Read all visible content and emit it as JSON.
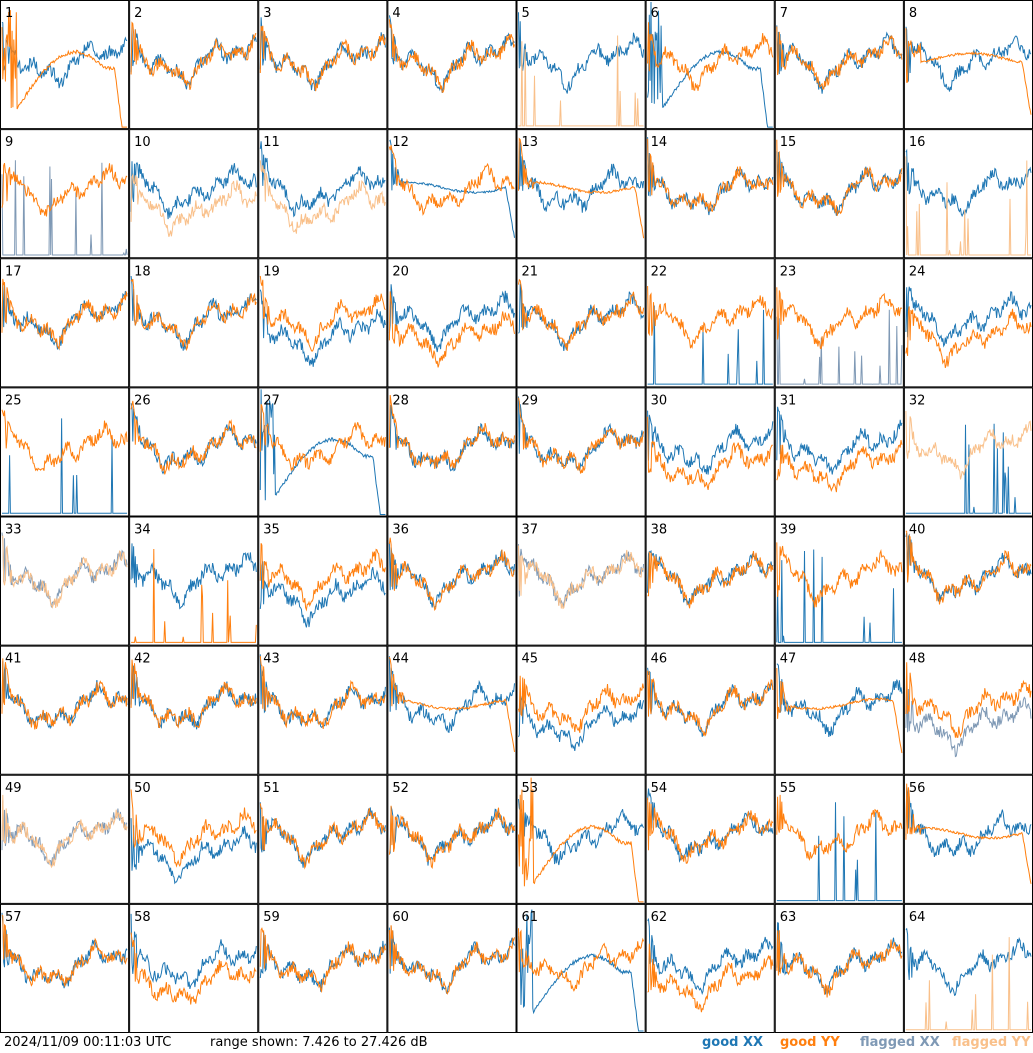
{
  "colors": {
    "good_xx": "#1f77b4",
    "good_yy": "#ff7f0e",
    "flagged_xx": "#7f99b5",
    "flagged_yy": "#f9c08a"
  },
  "footer": {
    "timestamp": "2024/11/09 00:11:03 UTC",
    "range": "range shown: 7.426 to 27.426 dB",
    "legend_good_xx": "good XX",
    "legend_good_yy": "good YY",
    "legend_flagged_xx": "flagged XX",
    "legend_flagged_yy": "flagged YY"
  },
  "chart_data": {
    "type": "line",
    "layout": "8x8 small multiples (one panel per antenna)",
    "ylim": [
      7.426,
      27.426
    ],
    "units": "dB",
    "panels": [
      {
        "label": "1",
        "xx": "normal",
        "yy": "sag",
        "xx_status": "good",
        "yy_status": "good"
      },
      {
        "label": "2",
        "xx": "normal",
        "yy": "normal",
        "xx_status": "good",
        "yy_status": "good"
      },
      {
        "label": "3",
        "xx": "normal",
        "yy": "normal",
        "xx_status": "good",
        "yy_status": "good"
      },
      {
        "label": "4",
        "xx": "normal",
        "yy": "normal",
        "xx_status": "good",
        "yy_status": "good"
      },
      {
        "label": "5",
        "xx": "normal",
        "yy": "spikes",
        "xx_status": "good",
        "yy_status": "flagged"
      },
      {
        "label": "6",
        "xx": "sag",
        "yy": "normal",
        "xx_status": "good",
        "yy_status": "good"
      },
      {
        "label": "7",
        "xx": "normal",
        "yy": "normal",
        "xx_status": "good",
        "yy_status": "good"
      },
      {
        "label": "8",
        "xx": "normal",
        "yy": "smooth",
        "xx_status": "good",
        "yy_status": "good"
      },
      {
        "label": "9",
        "xx": "spikes",
        "yy": "normal",
        "xx_status": "flagged",
        "yy_status": "good"
      },
      {
        "label": "10",
        "xx": "normal",
        "yy": "low",
        "xx_status": "good",
        "yy_status": "flagged"
      },
      {
        "label": "11",
        "xx": "normal",
        "yy": "low",
        "xx_status": "good",
        "yy_status": "flagged"
      },
      {
        "label": "12",
        "xx": "smooth",
        "yy": "normal",
        "xx_status": "good",
        "yy_status": "good"
      },
      {
        "label": "13",
        "xx": "normal",
        "yy": "smooth",
        "xx_status": "good",
        "yy_status": "good"
      },
      {
        "label": "14",
        "xx": "normal",
        "yy": "normal",
        "xx_status": "good",
        "yy_status": "good"
      },
      {
        "label": "15",
        "xx": "normal",
        "yy": "normal",
        "xx_status": "good",
        "yy_status": "good"
      },
      {
        "label": "16",
        "xx": "normal",
        "yy": "spikes",
        "xx_status": "good",
        "yy_status": "flagged"
      },
      {
        "label": "17",
        "xx": "normal",
        "yy": "normal",
        "xx_status": "good",
        "yy_status": "good"
      },
      {
        "label": "18",
        "xx": "normal",
        "yy": "normal",
        "xx_status": "good",
        "yy_status": "good"
      },
      {
        "label": "19",
        "xx": "low",
        "yy": "normal",
        "xx_status": "good",
        "yy_status": "good"
      },
      {
        "label": "20",
        "xx": "normal",
        "yy": "low",
        "xx_status": "good",
        "yy_status": "good"
      },
      {
        "label": "21",
        "xx": "normal",
        "yy": "normal",
        "xx_status": "good",
        "yy_status": "good"
      },
      {
        "label": "22",
        "xx": "spikes",
        "yy": "normal",
        "xx_status": "good",
        "yy_status": "good"
      },
      {
        "label": "23",
        "xx": "spikes",
        "yy": "normal",
        "xx_status": "flagged",
        "yy_status": "good"
      },
      {
        "label": "24",
        "xx": "normal",
        "yy": "low",
        "xx_status": "good",
        "yy_status": "good"
      },
      {
        "label": "25",
        "xx": "spikes",
        "yy": "normal",
        "xx_status": "good",
        "yy_status": "good"
      },
      {
        "label": "26",
        "xx": "normal",
        "yy": "normal",
        "xx_status": "good",
        "yy_status": "good"
      },
      {
        "label": "27",
        "xx": "sag",
        "yy": "normal",
        "xx_status": "good",
        "yy_status": "good"
      },
      {
        "label": "28",
        "xx": "normal",
        "yy": "normal",
        "xx_status": "good",
        "yy_status": "good"
      },
      {
        "label": "29",
        "xx": "normal",
        "yy": "normal",
        "xx_status": "good",
        "yy_status": "good"
      },
      {
        "label": "30",
        "xx": "normal",
        "yy": "low",
        "xx_status": "good",
        "yy_status": "good"
      },
      {
        "label": "31",
        "xx": "normal",
        "yy": "low",
        "xx_status": "good",
        "yy_status": "good"
      },
      {
        "label": "32",
        "xx": "spikes",
        "yy": "normal",
        "xx_status": "good",
        "yy_status": "flagged"
      },
      {
        "label": "33",
        "xx": "normal",
        "yy": "normal",
        "xx_status": "flagged",
        "yy_status": "flagged"
      },
      {
        "label": "34",
        "xx": "normal",
        "yy": "spikes",
        "xx_status": "good",
        "yy_status": "good"
      },
      {
        "label": "35",
        "xx": "low",
        "yy": "normal",
        "xx_status": "good",
        "yy_status": "good"
      },
      {
        "label": "36",
        "xx": "normal",
        "yy": "normal",
        "xx_status": "good",
        "yy_status": "good"
      },
      {
        "label": "37",
        "xx": "normal",
        "yy": "normal",
        "xx_status": "flagged",
        "yy_status": "flagged"
      },
      {
        "label": "38",
        "xx": "normal",
        "yy": "normal",
        "xx_status": "good",
        "yy_status": "good"
      },
      {
        "label": "39",
        "xx": "spikes",
        "yy": "normal",
        "xx_status": "good",
        "yy_status": "good"
      },
      {
        "label": "40",
        "xx": "normal",
        "yy": "normal",
        "xx_status": "good",
        "yy_status": "good"
      },
      {
        "label": "41",
        "xx": "normal",
        "yy": "normal",
        "xx_status": "good",
        "yy_status": "good"
      },
      {
        "label": "42",
        "xx": "normal",
        "yy": "normal",
        "xx_status": "good",
        "yy_status": "good"
      },
      {
        "label": "43",
        "xx": "normal",
        "yy": "normal",
        "xx_status": "good",
        "yy_status": "good"
      },
      {
        "label": "44",
        "xx": "normal",
        "yy": "smooth",
        "xx_status": "good",
        "yy_status": "good"
      },
      {
        "label": "45",
        "xx": "low",
        "yy": "normal",
        "xx_status": "good",
        "yy_status": "good"
      },
      {
        "label": "46",
        "xx": "normal",
        "yy": "normal",
        "xx_status": "good",
        "yy_status": "good"
      },
      {
        "label": "47",
        "xx": "normal",
        "yy": "smooth",
        "xx_status": "good",
        "yy_status": "good"
      },
      {
        "label": "48",
        "xx": "low",
        "yy": "normal",
        "xx_status": "flagged",
        "yy_status": "good"
      },
      {
        "label": "49",
        "xx": "normal",
        "yy": "normal",
        "xx_status": "flagged",
        "yy_status": "flagged"
      },
      {
        "label": "50",
        "xx": "low",
        "yy": "normal",
        "xx_status": "good",
        "yy_status": "good"
      },
      {
        "label": "51",
        "xx": "normal",
        "yy": "normal",
        "xx_status": "good",
        "yy_status": "good"
      },
      {
        "label": "52",
        "xx": "normal",
        "yy": "normal",
        "xx_status": "good",
        "yy_status": "good"
      },
      {
        "label": "53",
        "xx": "normal",
        "yy": "sag",
        "xx_status": "good",
        "yy_status": "good"
      },
      {
        "label": "54",
        "xx": "normal",
        "yy": "normal",
        "xx_status": "good",
        "yy_status": "good"
      },
      {
        "label": "55",
        "xx": "spikes",
        "yy": "normal",
        "xx_status": "good",
        "yy_status": "good"
      },
      {
        "label": "56",
        "xx": "normal",
        "yy": "smooth",
        "xx_status": "good",
        "yy_status": "good"
      },
      {
        "label": "57",
        "xx": "normal",
        "yy": "normal",
        "xx_status": "good",
        "yy_status": "good"
      },
      {
        "label": "58",
        "xx": "normal",
        "yy": "low",
        "xx_status": "good",
        "yy_status": "good"
      },
      {
        "label": "59",
        "xx": "normal",
        "yy": "normal",
        "xx_status": "good",
        "yy_status": "good"
      },
      {
        "label": "60",
        "xx": "normal",
        "yy": "normal",
        "xx_status": "good",
        "yy_status": "good"
      },
      {
        "label": "61",
        "xx": "sag",
        "yy": "normal",
        "xx_status": "good",
        "yy_status": "good"
      },
      {
        "label": "62",
        "xx": "normal",
        "yy": "low",
        "xx_status": "good",
        "yy_status": "good"
      },
      {
        "label": "63",
        "xx": "normal",
        "yy": "normal",
        "xx_status": "good",
        "yy_status": "good"
      },
      {
        "label": "64",
        "xx": "normal",
        "yy": "spikes",
        "xx_status": "good",
        "yy_status": "flagged"
      }
    ]
  }
}
